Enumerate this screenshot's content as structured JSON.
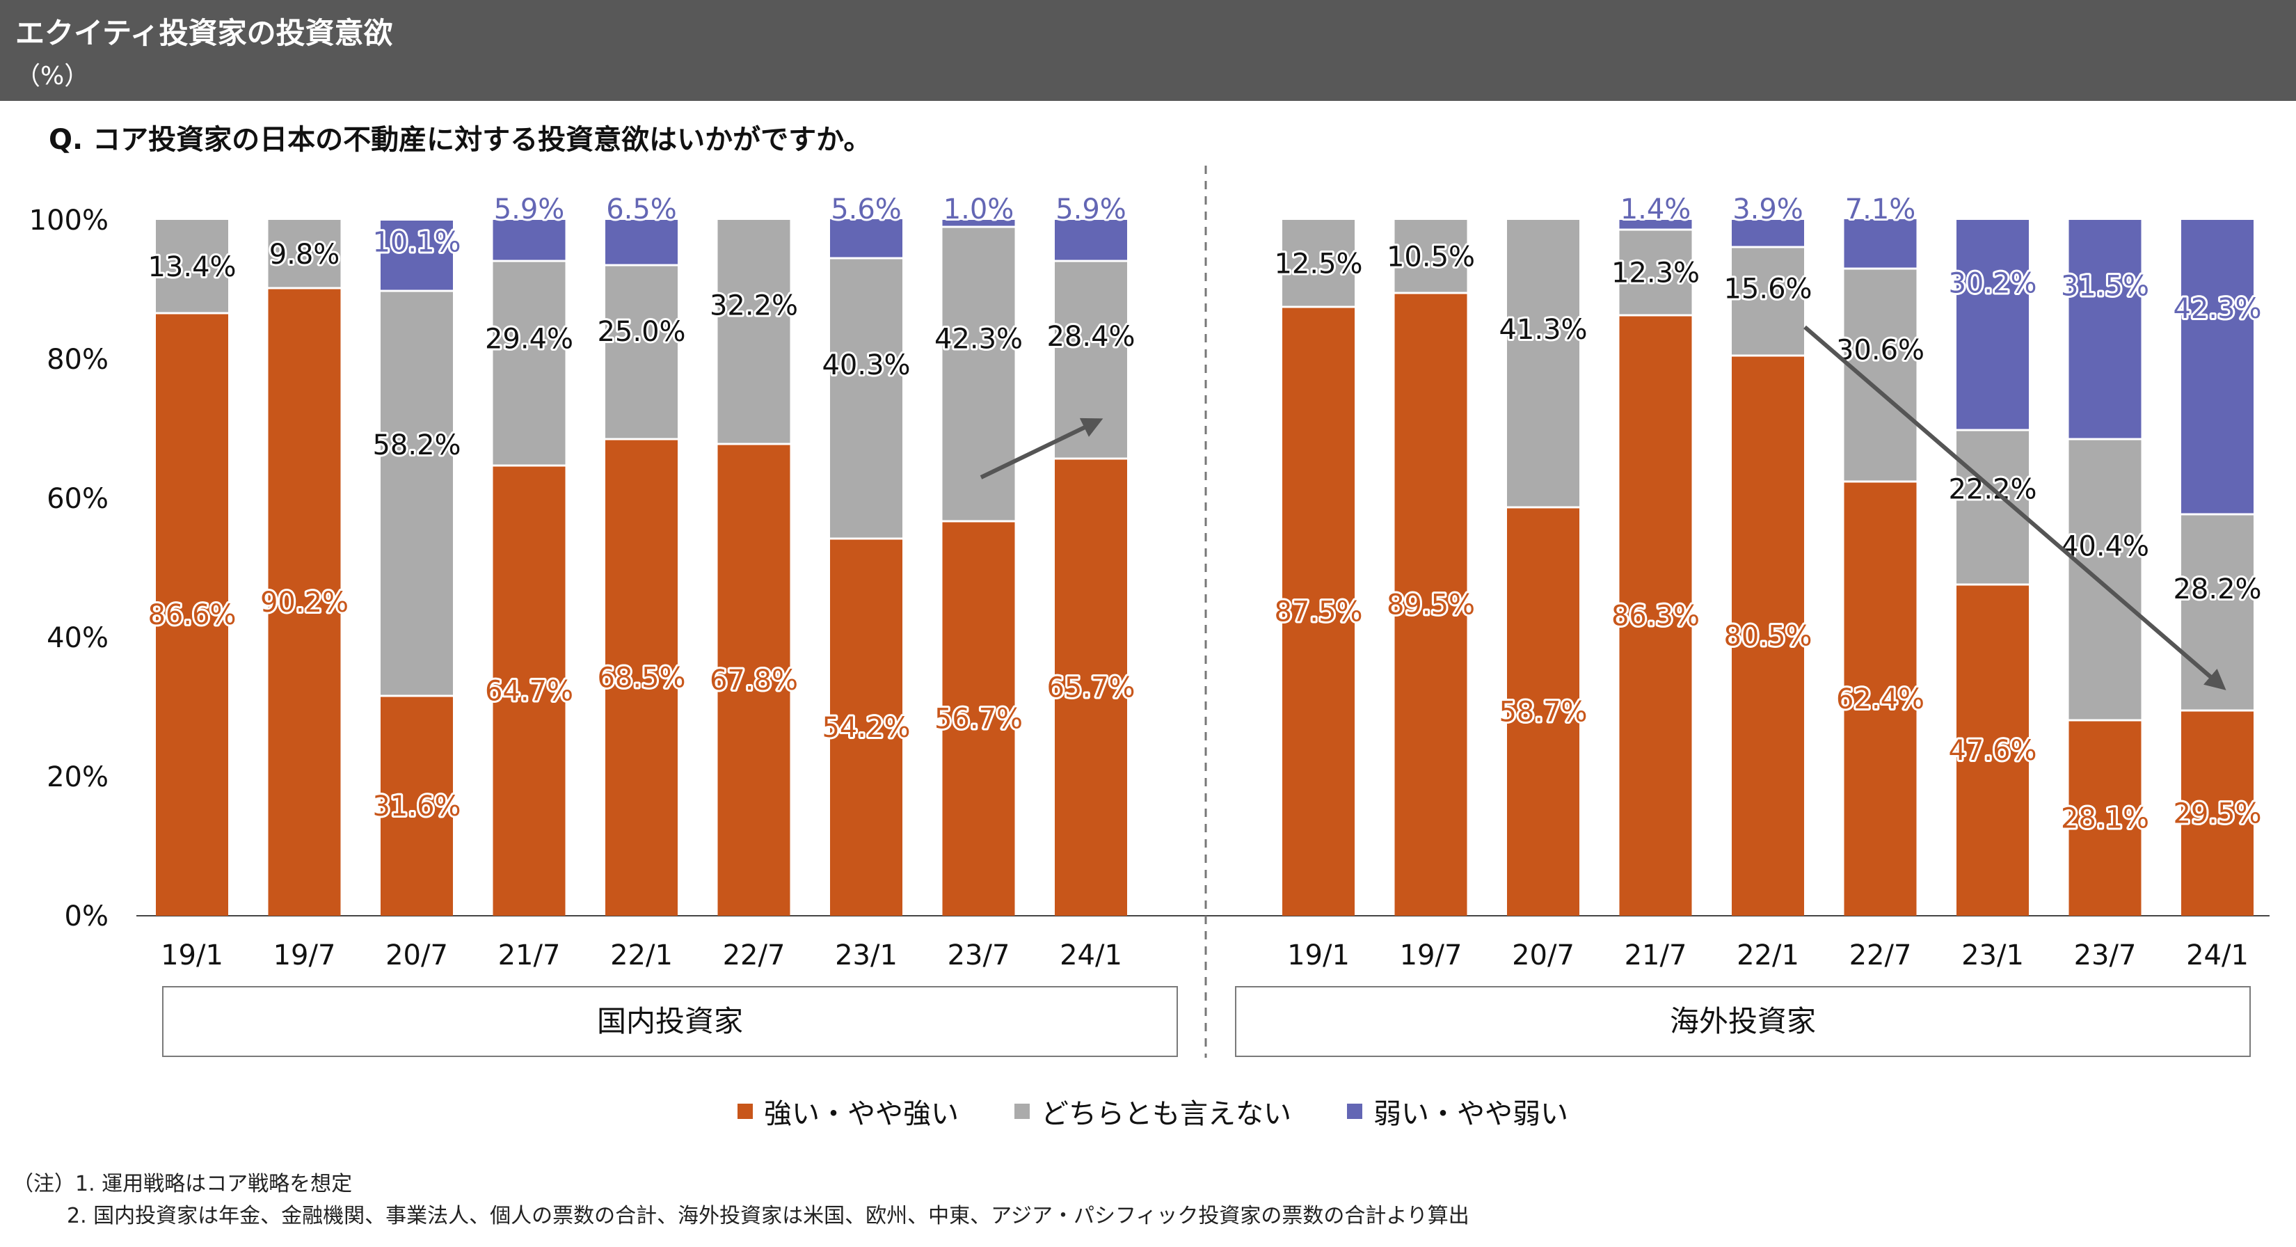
{
  "header": {
    "title": "エクイティ投資家の投資意欲",
    "unit": "（%）"
  },
  "question": "Q.  コア投資家の日本の不動産に対する投資意欲はいかがですか。",
  "colors": {
    "strong": "#C8561A",
    "neutral": "#ABABAB",
    "weak": "#6366B4",
    "header_bg": "#585858",
    "arrow": "#555555"
  },
  "chart_data": {
    "type": "bar",
    "stacked": true,
    "ylim": [
      0,
      100
    ],
    "yticks": [
      "0%",
      "20%",
      "40%",
      "60%",
      "80%",
      "100%"
    ],
    "series_labels": [
      "強い・やや強い",
      "どちらとも言えない",
      "弱い・やや弱い"
    ],
    "groups": [
      {
        "name": "国内投資家",
        "categories": [
          "19/1",
          "19/7",
          "20/7",
          "21/7",
          "22/1",
          "22/7",
          "23/1",
          "23/7",
          "24/1"
        ],
        "strong": [
          86.6,
          90.2,
          31.6,
          64.7,
          68.5,
          67.8,
          54.2,
          56.7,
          65.7
        ],
        "neutral": [
          13.4,
          9.8,
          58.2,
          29.4,
          25.0,
          32.2,
          40.3,
          42.3,
          28.4
        ],
        "weak": [
          0,
          0,
          10.1,
          5.9,
          6.5,
          0,
          5.6,
          1.0,
          5.9
        ],
        "strong_labels": [
          "86.6%",
          "90.2%",
          "31.6%",
          "64.7%",
          "68.5%",
          "67.8%",
          "54.2%",
          "56.7%",
          "65.7%"
        ],
        "neutral_labels": [
          "13.4%",
          "9.8%",
          "58.2%",
          "29.4%",
          "25.0%",
          "32.2%",
          "40.3%",
          "42.3%",
          "28.4%"
        ],
        "weak_labels": [
          "",
          "",
          "10.1%",
          "5.9%",
          "6.5%",
          "",
          "5.6%",
          "1.0%",
          "5.9%"
        ],
        "trend": "up"
      },
      {
        "name": "海外投資家",
        "categories": [
          "19/1",
          "19/7",
          "20/7",
          "21/7",
          "22/1",
          "22/7",
          "23/1",
          "23/7",
          "24/1"
        ],
        "strong": [
          87.5,
          89.5,
          58.7,
          86.3,
          80.5,
          62.4,
          47.6,
          28.1,
          29.5
        ],
        "neutral": [
          12.5,
          10.5,
          41.3,
          12.3,
          15.6,
          30.6,
          22.2,
          40.4,
          28.2
        ],
        "weak": [
          0,
          0,
          0,
          1.4,
          3.9,
          7.1,
          30.2,
          31.5,
          42.3
        ],
        "strong_labels": [
          "87.5%",
          "89.5%",
          "58.7%",
          "86.3%",
          "80.5%",
          "62.4%",
          "47.6%",
          "28.1%",
          "29.5%"
        ],
        "neutral_labels": [
          "12.5%",
          "10.5%",
          "41.3%",
          "12.3%",
          "15.6%",
          "30.6%",
          "22.2%",
          "40.4%",
          "28.2%"
        ],
        "weak_labels": [
          "",
          "",
          "",
          "1.4%",
          "3.9%",
          "7.1%",
          "30.2%",
          "31.5%",
          "42.3%"
        ],
        "trend": "down"
      }
    ]
  },
  "legend": {
    "strong": "強い・やや強い",
    "neutral": "どちらとも言えない",
    "weak": "弱い・やや弱い"
  },
  "notes": {
    "line1": "（注）1.  運用戦略はコア戦略を想定",
    "line2": "2.  国内投資家は年金、金融機関、事業法人、個人の票数の合計、海外投資家は米国、欧州、中東、アジア・パシフィック投資家の票数の合計より算出"
  }
}
